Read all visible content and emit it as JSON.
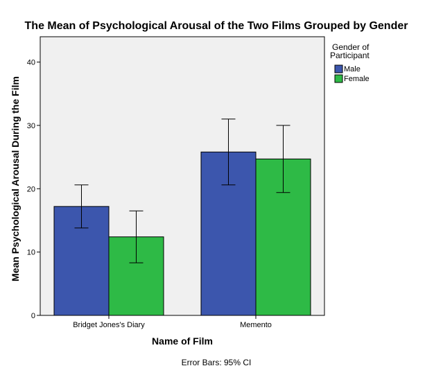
{
  "chart_data": {
    "type": "bar",
    "title": "The Mean of Psychological Arousal of the Two Films Grouped by Gender",
    "xlabel": "Name of Film",
    "ylabel": "Mean Psychological Arousal During the Film",
    "categories": [
      "Bridget Jones's Diary",
      "Memento"
    ],
    "series": [
      {
        "name": "Male",
        "color": "#3c56ad",
        "values": [
          17.2,
          25.8
        ],
        "ci_low": [
          13.8,
          20.6
        ],
        "ci_high": [
          20.6,
          31.0
        ]
      },
      {
        "name": "Female",
        "color": "#2eba46",
        "values": [
          12.4,
          24.7
        ],
        "ci_low": [
          8.3,
          19.4
        ],
        "ci_high": [
          16.5,
          30.0
        ]
      }
    ],
    "ylim": [
      0,
      44
    ],
    "yticks": [
      0,
      10,
      20,
      30,
      40
    ],
    "legend_title": "Gender of Participant",
    "legend_position": "right",
    "grid": false,
    "plot_background": "#f0f0f0",
    "footnote": "Error Bars: 95% CI"
  }
}
